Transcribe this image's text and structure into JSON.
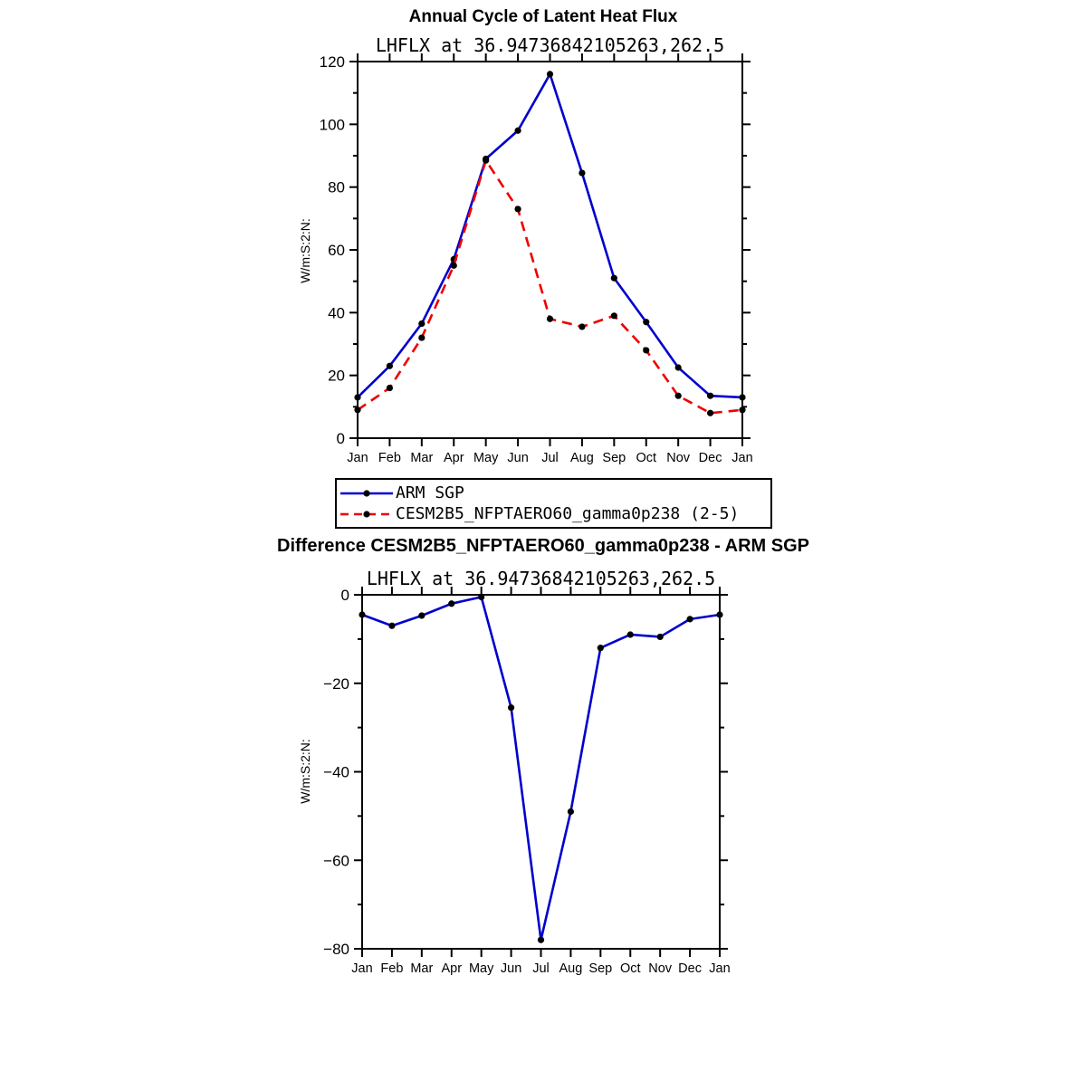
{
  "chart_data": [
    {
      "type": "line",
      "title": "Annual Cycle of Latent Heat Flux",
      "subtitle": "LHFLX at 36.94736842105263,262.5",
      "ylabel": "W/m:S:2:N:",
      "xlabel": "",
      "categories": [
        "Jan",
        "Feb",
        "Mar",
        "Apr",
        "May",
        "Jun",
        "Jul",
        "Aug",
        "Sep",
        "Oct",
        "Nov",
        "Dec",
        "Jan"
      ],
      "ylim": [
        0,
        120
      ],
      "ytick_step": 20,
      "grid": false,
      "legend_position": "below",
      "series": [
        {
          "name": "ARM SGP",
          "color": "#0000cd",
          "dash": "solid",
          "marker_color": "#000000",
          "values": [
            13,
            23,
            36.5,
            57,
            89,
            98,
            116,
            84.5,
            51,
            37,
            22.5,
            13.5,
            13
          ]
        },
        {
          "name": "CESM2B5_NFPTAERO60_gamma0p238 (2-5)",
          "color": "#ee0000",
          "dash": "dashed",
          "marker_color": "#000000",
          "values": [
            9,
            16,
            32,
            55,
            88.5,
            73,
            38,
            35.5,
            39,
            28,
            13.5,
            8,
            9
          ]
        }
      ]
    },
    {
      "type": "line",
      "title": "Difference CESM2B5_NFPTAERO60_gamma0p238 - ARM SGP",
      "subtitle": "LHFLX at 36.94736842105263,262.5",
      "ylabel": "W/m:S:2:N:",
      "xlabel": "",
      "categories": [
        "Jan",
        "Feb",
        "Mar",
        "Apr",
        "May",
        "Jun",
        "Jul",
        "Aug",
        "Sep",
        "Oct",
        "Nov",
        "Dec",
        "Jan"
      ],
      "ylim": [
        -80,
        0
      ],
      "ytick_step": 20,
      "grid": false,
      "legend_position": "none",
      "series": [
        {
          "name": "difference",
          "color": "#0000cd",
          "dash": "solid",
          "marker_color": "#000000",
          "values": [
            -4.5,
            -7,
            -4.7,
            -2,
            -0.5,
            -25.5,
            -78,
            -49,
            -12,
            -9,
            -9.5,
            -5.5,
            -4.5
          ]
        }
      ]
    }
  ]
}
